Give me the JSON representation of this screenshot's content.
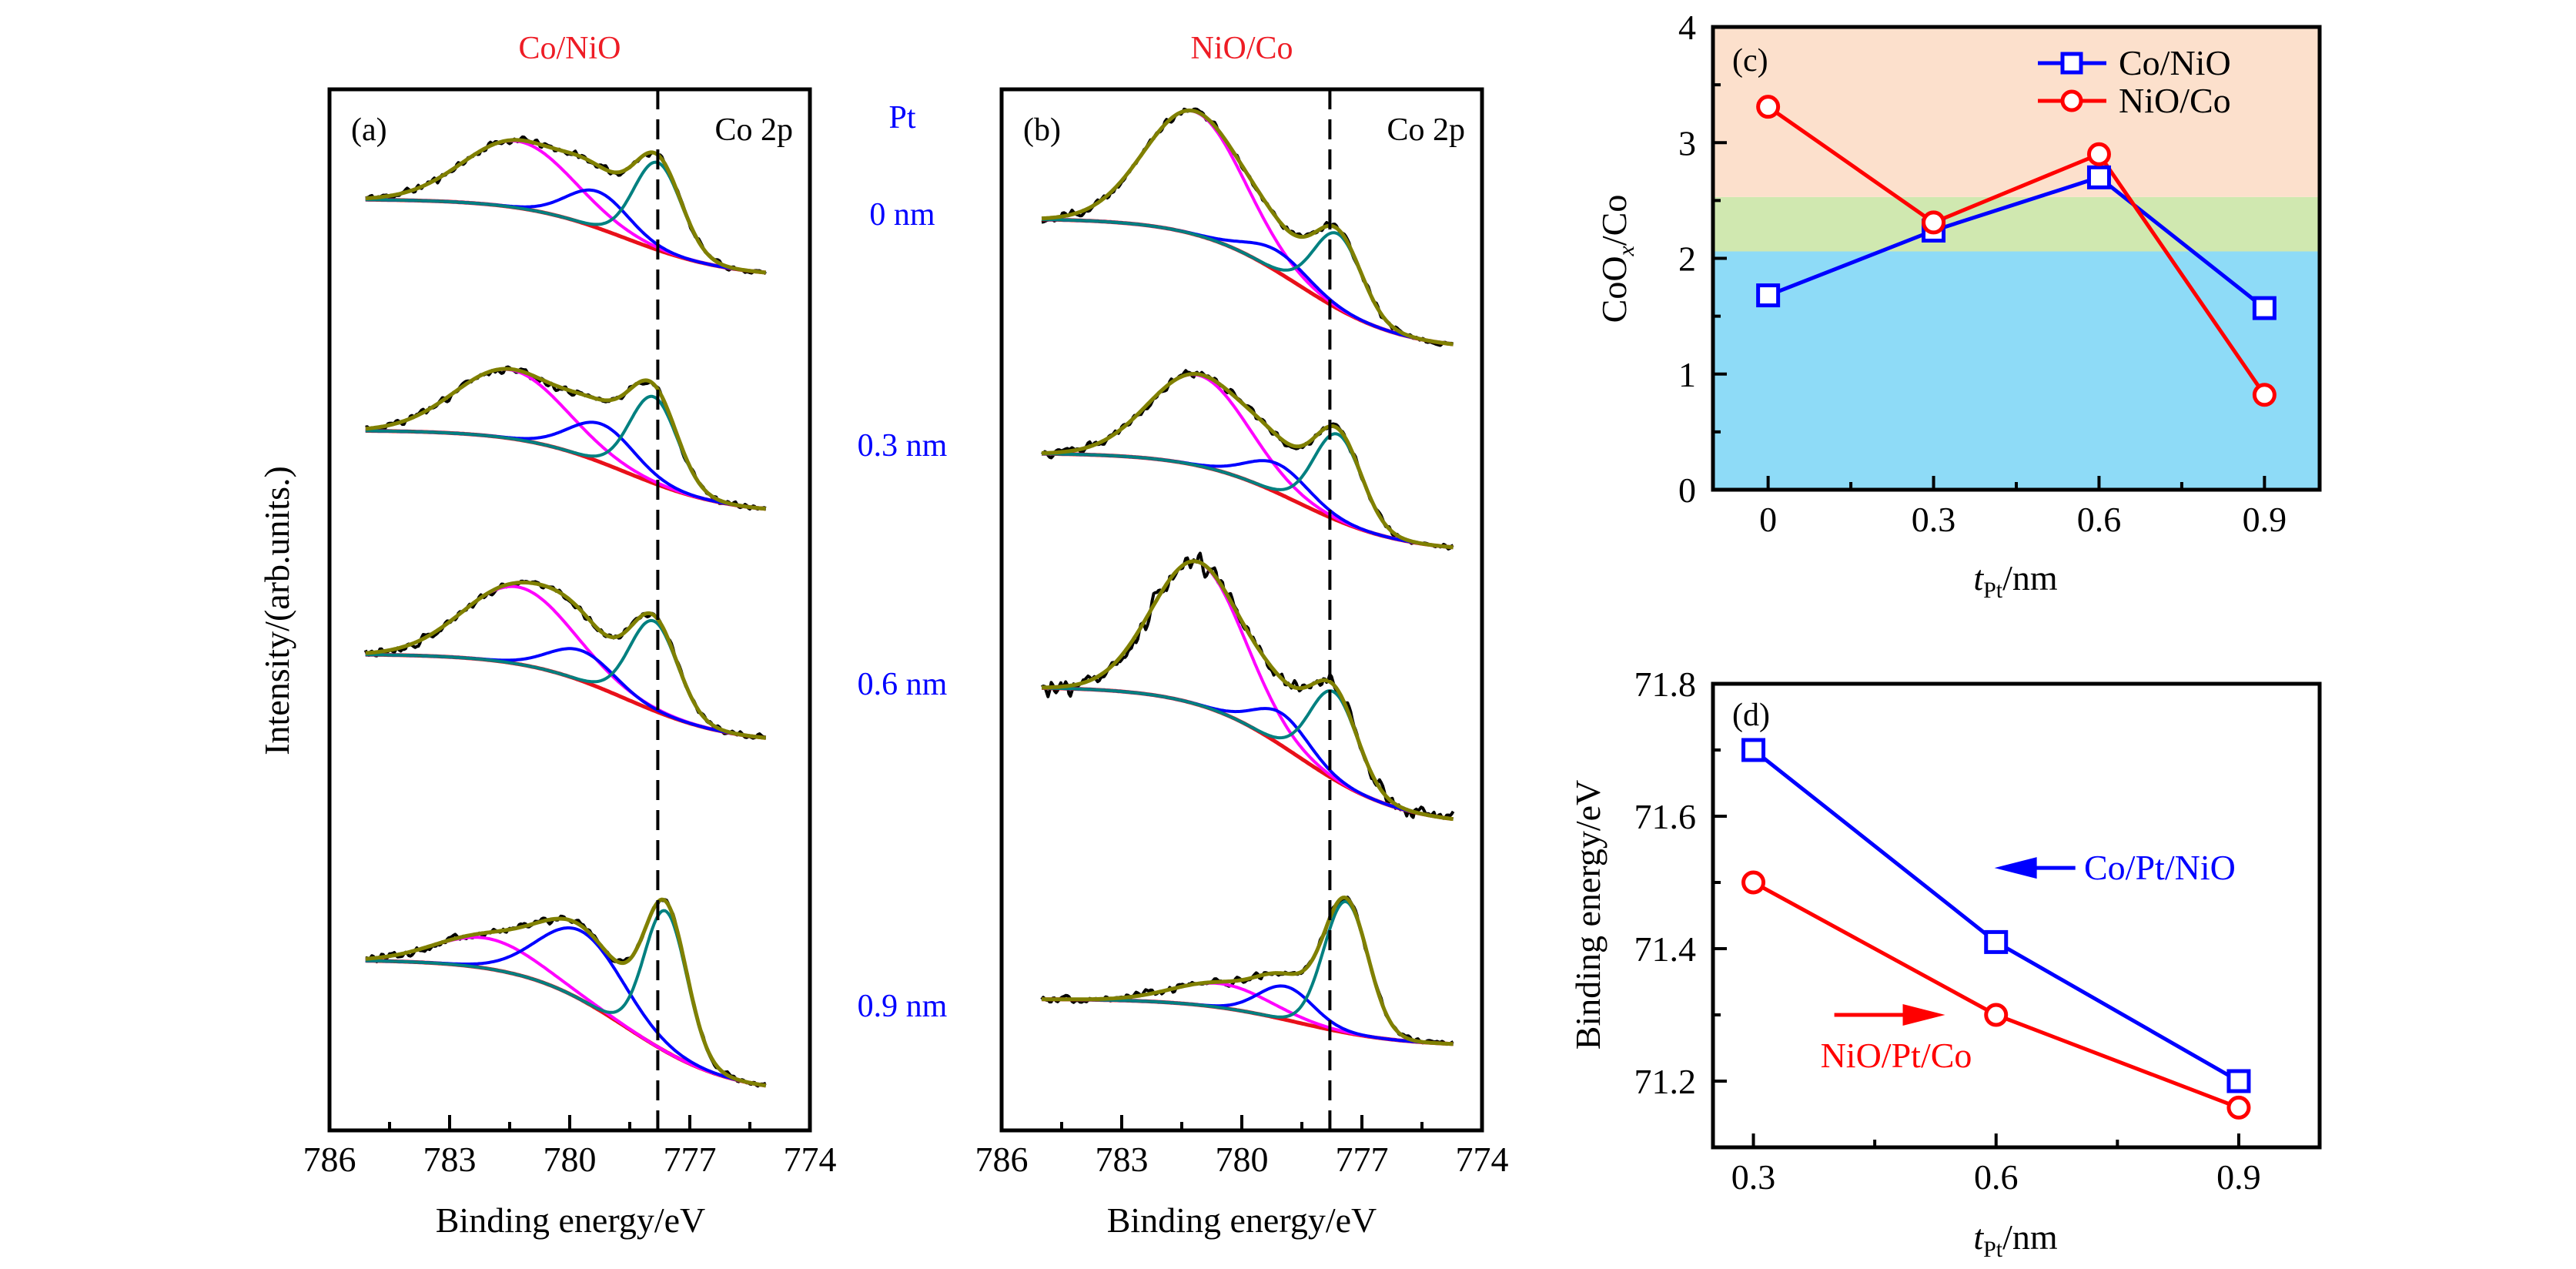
{
  "figure": {
    "pt_header": "Pt",
    "pt_labels": [
      "0 nm",
      "0.3 nm",
      "0.6 nm",
      "0.9 nm"
    ],
    "title_color": "#EE1C25",
    "pt_color": "#0000FF"
  },
  "chart_data": [
    {
      "panel": "(a)",
      "type": "line",
      "title": "Co/NiO",
      "annotation": "Co 2p",
      "xlabel": "Binding energy/eV",
      "ylabel": "Intensity/(arb.units.)",
      "xlim": [
        786,
        774
      ],
      "xticks": [
        786,
        783,
        780,
        777,
        774
      ],
      "minor_xticks": [
        784.5,
        781.5,
        778.5,
        775.5
      ],
      "reference_line": {
        "x": 777.8,
        "style": "dashed"
      },
      "energy_range": [
        785.1,
        775.1
      ],
      "colors": {
        "data": "#000000",
        "envelope": "#808000",
        "background": "#E8101A",
        "components": [
          "#FF00FF",
          "#0000FF",
          "#008080"
        ]
      },
      "spectra": [
        {
          "pt": "0 nm",
          "offset": 82.4,
          "background_step": 7.0,
          "components": [
            {
              "center": 781.3,
              "height": 6.4,
              "fwhm": 3.2
            },
            {
              "center": 779.3,
              "height": 3.5,
              "fwhm": 1.8
            },
            {
              "center": 777.8,
              "height": 8.4,
              "fwhm": 1.4
            }
          ]
        },
        {
          "pt": "0.3 nm",
          "offset": 59.7,
          "background_step": 7.5,
          "components": [
            {
              "center": 781.5,
              "height": 6.6,
              "fwhm": 3.2
            },
            {
              "center": 779.2,
              "height": 3.7,
              "fwhm": 1.9
            },
            {
              "center": 777.9,
              "height": 8.3,
              "fwhm": 1.4
            }
          ]
        },
        {
          "pt": "0.6 nm",
          "offset": 37.7,
          "background_step": 8.0,
          "components": [
            {
              "center": 781.3,
              "height": 7.4,
              "fwhm": 3.2
            },
            {
              "center": 779.7,
              "height": 2.9,
              "fwhm": 1.9
            },
            {
              "center": 777.9,
              "height": 8.6,
              "fwhm": 1.4
            }
          ]
        },
        {
          "pt": "0.9 nm",
          "offset": 4.3,
          "background_step": 12.0,
          "components": [
            {
              "center": 782.1,
              "height": 2.9,
              "fwhm": 3.0
            },
            {
              "center": 779.7,
              "height": 6.6,
              "fwhm": 2.5
            },
            {
              "center": 777.6,
              "height": 13.5,
              "fwhm": 1.25
            }
          ]
        }
      ]
    },
    {
      "panel": "(b)",
      "type": "line",
      "title": "NiO/Co",
      "annotation": "Co 2p",
      "xlabel": "Binding energy/eV",
      "xlim": [
        786,
        774
      ],
      "xticks": [
        786,
        783,
        780,
        777,
        774
      ],
      "minor_xticks": [
        784.5,
        781.5,
        778.5,
        775.5
      ],
      "reference_line": {
        "x": 777.8,
        "style": "dashed"
      },
      "energy_range": [
        785.0,
        774.7
      ],
      "colors": {
        "data": "#000000",
        "envelope": "#808000",
        "background": "#E8101A",
        "components": [
          "#FF00FF",
          "#0000FF",
          "#008080"
        ]
      },
      "spectra": [
        {
          "pt": "0 nm",
          "offset": 75.5,
          "background_step": 12.0,
          "components": [
            {
              "center": 781.2,
              "height": 11.8,
              "fwhm": 2.9
            },
            {
              "center": 779.1,
              "height": 2.0,
              "fwhm": 1.8
            },
            {
              "center": 777.6,
              "height": 7.2,
              "fwhm": 1.4
            }
          ]
        },
        {
          "pt": "0.3 nm",
          "offset": 56.0,
          "background_step": 9.0,
          "components": [
            {
              "center": 781.1,
              "height": 8.7,
              "fwhm": 2.9
            },
            {
              "center": 779.1,
              "height": 2.8,
              "fwhm": 1.8
            },
            {
              "center": 777.6,
              "height": 8.3,
              "fwhm": 1.4
            }
          ]
        },
        {
          "pt": "0.6 nm",
          "offset": 29.9,
          "background_step": 12.6,
          "components": [
            {
              "center": 781.1,
              "height": 13.7,
              "fwhm": 2.7
            },
            {
              "center": 779.0,
              "height": 3.1,
              "fwhm": 1.6
            },
            {
              "center": 777.7,
              "height": 8.4,
              "fwhm": 1.4
            }
          ]
        },
        {
          "pt": "0.9 nm",
          "offset": 8.3,
          "background_step": 4.3,
          "components": [
            {
              "center": 780.5,
              "height": 2.3,
              "fwhm": 2.8
            },
            {
              "center": 778.9,
              "height": 3.2,
              "fwhm": 1.6
            },
            {
              "center": 777.4,
              "height": 12.6,
              "fwhm": 1.3
            }
          ]
        }
      ]
    },
    {
      "panel": "(c)",
      "type": "line",
      "x": [
        0,
        0.3,
        0.6,
        0.9
      ],
      "series": [
        {
          "name": "Co/NiO",
          "values": [
            1.68,
            2.24,
            2.7,
            1.57
          ],
          "color": "#0000FF",
          "marker": "square"
        },
        {
          "name": "NiO/Co",
          "values": [
            3.31,
            2.31,
            2.9,
            0.82
          ],
          "color": "#FF0000",
          "marker": "circle"
        }
      ],
      "xlim": [
        -0.1,
        1.0
      ],
      "ylim": [
        0,
        4
      ],
      "xticks": [
        0,
        0.3,
        0.6,
        0.9
      ],
      "minor_xticks": [
        0.15,
        0.45,
        0.75
      ],
      "yticks": [
        0,
        1,
        2,
        3,
        4
      ],
      "minor_yticks": [
        0.5,
        1.5,
        2.5,
        3.5
      ],
      "xlabel": {
        "main": "t",
        "sub": "Pt",
        "rest": "/nm"
      },
      "ylabel": {
        "main": "CoO",
        "sub": "x",
        "rest": "/Co"
      },
      "legend": "top-right",
      "grid": false,
      "bands": [
        {
          "from": 0,
          "to": 2.06,
          "color": "#8EDBF7"
        },
        {
          "from": 2.06,
          "to": 2.53,
          "color": "#D0E8B0"
        },
        {
          "from": 2.53,
          "to": 4,
          "color": "#FCE0CC"
        }
      ]
    },
    {
      "panel": "(d)",
      "type": "line",
      "x": [
        0.3,
        0.6,
        0.9
      ],
      "series": [
        {
          "values": [
            71.7,
            71.41,
            71.2
          ],
          "color": "#0000FF",
          "marker": "square"
        },
        {
          "values": [
            71.5,
            71.3,
            71.16
          ],
          "color": "#FF0000",
          "marker": "circle"
        }
      ],
      "xlim": [
        0.25,
        1.0
      ],
      "ylim": [
        71.1,
        71.8
      ],
      "xticks": [
        0.3,
        0.6,
        0.9
      ],
      "minor_xticks": [
        0.45,
        0.75
      ],
      "yticks": [
        71.2,
        71.4,
        71.6,
        71.8
      ],
      "minor_yticks": [
        71.3,
        71.5,
        71.7
      ],
      "xlabel": {
        "main": "t",
        "sub": "Pt",
        "rest": "/nm"
      },
      "ylabel": "Binding energy/eV",
      "grid": false,
      "annotations": [
        {
          "text": "Co/Pt/NiO",
          "color": "#0000FF",
          "arrow": "left"
        },
        {
          "text": "NiO/Pt/Co",
          "color": "#FF0000",
          "arrow": "right"
        }
      ]
    }
  ]
}
